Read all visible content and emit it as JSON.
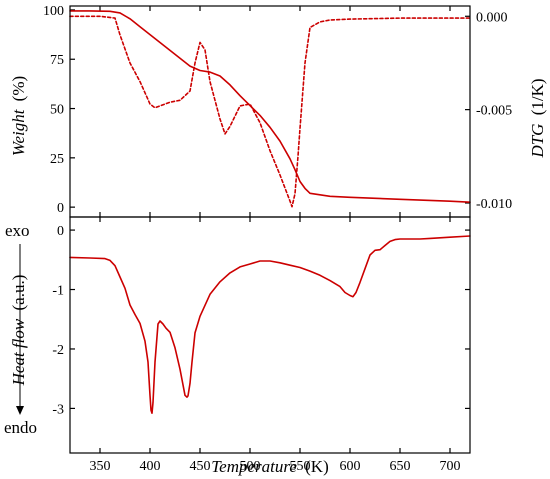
{
  "chart_data": [
    {
      "type": "line",
      "panel": "top",
      "ylabel": {
        "italic": "Weight",
        "unit": "(%)"
      },
      "y2label": {
        "italic": "DTG",
        "unit": "(1/K)"
      },
      "xlim": [
        320,
        720
      ],
      "ylim": [
        -5,
        102
      ],
      "y2lim": [
        -0.01075,
        0.00055
      ],
      "yticks": [
        0,
        25,
        50,
        75,
        100
      ],
      "y2ticks": [
        {
          "value": 0.0,
          "label": "0.000"
        },
        {
          "value": -0.005,
          "label": "-0.005"
        },
        {
          "value": -0.01,
          "label": "-0.010"
        }
      ],
      "series": [
        {
          "role": "weight",
          "axis": "left",
          "color": "#cc0000",
          "dash": "solid",
          "x": [
            320,
            340,
            360,
            370,
            380,
            390,
            400,
            410,
            420,
            430,
            440,
            450,
            460,
            470,
            480,
            490,
            500,
            510,
            520,
            530,
            540,
            545,
            550,
            555,
            560,
            580,
            600,
            650,
            700,
            720
          ],
          "y": [
            99.5,
            99.5,
            99.3,
            98.5,
            95.5,
            91.5,
            87.5,
            83.5,
            79.5,
            75.5,
            71.5,
            69.3,
            68.5,
            66.5,
            62,
            56.5,
            51.5,
            46.5,
            40.5,
            33.5,
            24.5,
            19,
            13,
            9.5,
            7,
            5.5,
            5,
            4,
            3,
            2.5
          ]
        },
        {
          "role": "dtg",
          "axis": "right",
          "color": "#cc0000",
          "dash": "dotted",
          "x": [
            320,
            350,
            365,
            370,
            380,
            390,
            400,
            405,
            410,
            420,
            430,
            440,
            445,
            450,
            455,
            460,
            470,
            475,
            480,
            490,
            500,
            510,
            520,
            530,
            540,
            542,
            545,
            548,
            550,
            555,
            560,
            570,
            580,
            600,
            650,
            720
          ],
          "y": [
            0,
            0,
            -0.0001,
            -0.001,
            -0.0025,
            -0.0035,
            -0.0047,
            -0.0049,
            -0.0048,
            -0.0046,
            -0.0045,
            -0.004,
            -0.0025,
            -0.0014,
            -0.0018,
            -0.0035,
            -0.0055,
            -0.0063,
            -0.0059,
            -0.0048,
            -0.0047,
            -0.0057,
            -0.0072,
            -0.0085,
            -0.0099,
            -0.0102,
            -0.0095,
            -0.0075,
            -0.006,
            -0.0025,
            -0.0006,
            -0.0003,
            -0.0002,
            -0.00015,
            -0.0001,
            -0.0001
          ]
        }
      ]
    },
    {
      "type": "line",
      "panel": "bottom",
      "xlabel": {
        "italic": "Temperature",
        "unit": "(K)"
      },
      "ylabel": {
        "italic": "Heat flow",
        "unit": "(a.u.)"
      },
      "ylabel_top": "exo",
      "ylabel_bottom": "endo",
      "xlim": [
        320,
        720
      ],
      "ylim": [
        -3.75,
        0.22
      ],
      "xticks": [
        350,
        400,
        450,
        500,
        550,
        600,
        650,
        700
      ],
      "yticks": [
        {
          "value": 0,
          "label": "0"
        },
        {
          "value": -1,
          "label": "-1"
        },
        {
          "value": -2,
          "label": "-2"
        },
        {
          "value": -3,
          "label": "-3"
        }
      ],
      "series": [
        {
          "role": "heat-flow",
          "color": "#cc0000",
          "dash": "solid",
          "x": [
            320,
            340,
            355,
            360,
            365,
            370,
            375,
            380,
            385,
            390,
            395,
            398,
            400,
            401,
            402,
            403,
            405,
            408,
            410,
            413,
            416,
            420,
            425,
            430,
            435,
            437,
            438,
            440,
            442,
            445,
            450,
            460,
            470,
            480,
            490,
            500,
            510,
            520,
            530,
            540,
            550,
            560,
            570,
            580,
            590,
            595,
            600,
            603,
            606,
            610,
            615,
            620,
            625,
            630,
            635,
            640,
            645,
            650,
            660,
            670,
            680,
            700,
            720
          ],
          "y": [
            -0.46,
            -0.47,
            -0.48,
            -0.51,
            -0.6,
            -0.79,
            -0.98,
            -1.26,
            -1.42,
            -1.57,
            -1.87,
            -2.22,
            -2.78,
            -3.03,
            -3.08,
            -2.9,
            -2.22,
            -1.58,
            -1.53,
            -1.58,
            -1.65,
            -1.72,
            -1.98,
            -2.34,
            -2.78,
            -2.81,
            -2.79,
            -2.58,
            -2.22,
            -1.73,
            -1.45,
            -1.08,
            -0.87,
            -0.72,
            -0.62,
            -0.57,
            -0.52,
            -0.52,
            -0.55,
            -0.59,
            -0.63,
            -0.69,
            -0.76,
            -0.85,
            -0.95,
            -1.05,
            -1.1,
            -1.12,
            -1.05,
            -0.88,
            -0.65,
            -0.42,
            -0.34,
            -0.33,
            -0.26,
            -0.19,
            -0.16,
            -0.15,
            -0.15,
            -0.15,
            -0.14,
            -0.12,
            -0.1
          ]
        }
      ]
    }
  ]
}
